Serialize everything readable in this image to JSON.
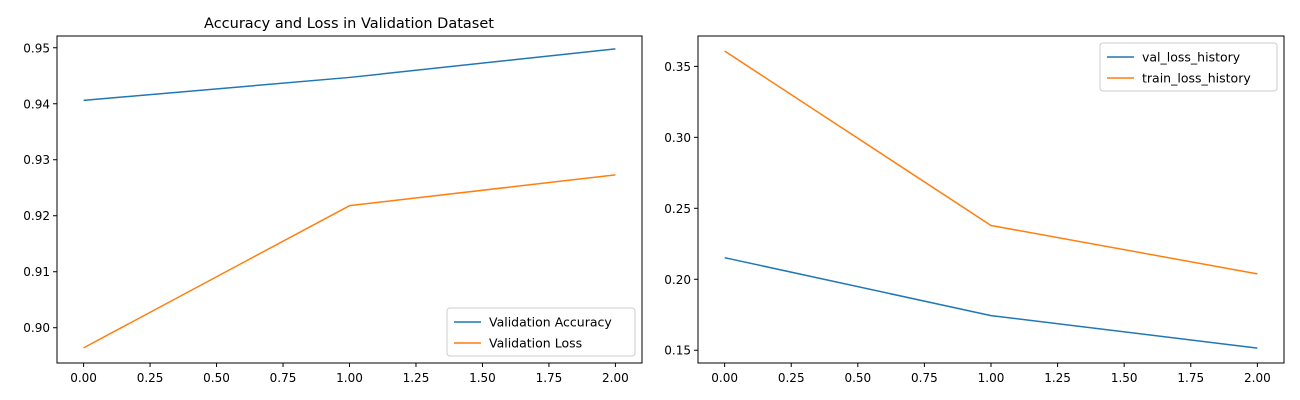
{
  "colors": {
    "series_blue": "#1f77b4",
    "series_orange": "#ff7f0e"
  },
  "chart_data": [
    {
      "type": "line",
      "title": "Accuracy and Loss in Validation Dataset",
      "xlabel": "",
      "ylabel": "",
      "x": [
        0,
        1,
        2
      ],
      "series": [
        {
          "name": "Validation Accuracy",
          "values": [
            0.9406,
            0.9447,
            0.9498
          ],
          "color": "#1f77b4"
        },
        {
          "name": "Validation Loss",
          "values": [
            0.8964,
            0.9218,
            0.9273
          ],
          "color": "#ff7f0e"
        }
      ],
      "xlim": [
        -0.1,
        2.1
      ],
      "ylim": [
        0.8937,
        0.9521
      ],
      "xticks": [
        0.0,
        0.25,
        0.5,
        0.75,
        1.0,
        1.25,
        1.5,
        1.75,
        2.0
      ],
      "xtick_labels": [
        "0.00",
        "0.25",
        "0.50",
        "0.75",
        "1.00",
        "1.25",
        "1.50",
        "1.75",
        "2.00"
      ],
      "yticks": [
        0.9,
        0.91,
        0.92,
        0.93,
        0.94,
        0.95
      ],
      "ytick_labels": [
        "0.90",
        "0.91",
        "0.92",
        "0.93",
        "0.94",
        "0.95"
      ],
      "grid": false,
      "legend": "lower-right"
    },
    {
      "type": "line",
      "title": "",
      "xlabel": "",
      "ylabel": "",
      "x": [
        0,
        1,
        2
      ],
      "series": [
        {
          "name": "val_loss_history",
          "values": [
            0.2152,
            0.1744,
            0.1515
          ],
          "color": "#1f77b4"
        },
        {
          "name": "train_loss_history",
          "values": [
            0.3608,
            0.2379,
            0.2038
          ],
          "color": "#ff7f0e"
        }
      ],
      "xlim": [
        -0.1,
        2.1
      ],
      "ylim": [
        0.141,
        0.3714
      ],
      "xticks": [
        0.0,
        0.25,
        0.5,
        0.75,
        1.0,
        1.25,
        1.5,
        1.75,
        2.0
      ],
      "xtick_labels": [
        "0.00",
        "0.25",
        "0.50",
        "0.75",
        "1.00",
        "1.25",
        "1.50",
        "1.75",
        "2.00"
      ],
      "yticks": [
        0.15,
        0.2,
        0.25,
        0.3,
        0.35
      ],
      "ytick_labels": [
        "0.15",
        "0.20",
        "0.25",
        "0.30",
        "0.35"
      ],
      "grid": false,
      "legend": "upper-right"
    }
  ]
}
